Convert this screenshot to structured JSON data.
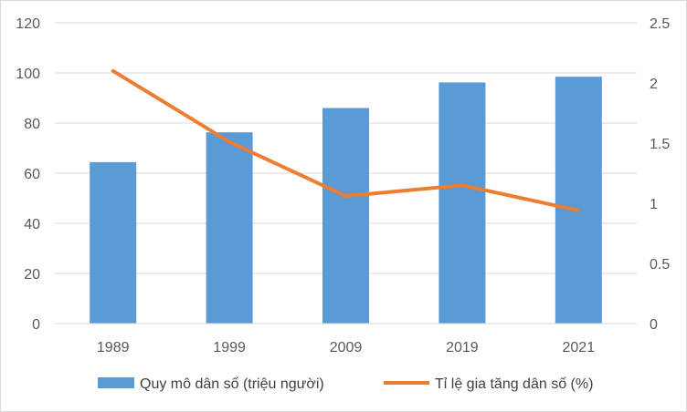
{
  "chart_data": {
    "type": "bar",
    "categories": [
      "1989",
      "1999",
      "2009",
      "2019",
      "2021"
    ],
    "series": [
      {
        "name": "Quy mô dân số (triệu người)",
        "chart_type": "bar",
        "axis": "left",
        "color": "#5b9bd5",
        "values": [
          64.4,
          76.3,
          86.0,
          96.2,
          98.5
        ]
      },
      {
        "name": "Tỉ lệ gia tăng dân số (%)",
        "chart_type": "line",
        "axis": "right",
        "color": "#ed7d31",
        "values": [
          2.1,
          1.51,
          1.06,
          1.15,
          0.94
        ]
      }
    ],
    "y_left": {
      "range": [
        0,
        120
      ],
      "ticks": [
        "0",
        "20",
        "40",
        "60",
        "80",
        "100",
        "120"
      ]
    },
    "y_right": {
      "range": [
        0,
        2.5
      ],
      "ticks": [
        "0",
        "0.5",
        "1",
        "1.5",
        "2",
        "2.5"
      ]
    },
    "title": "",
    "xlabel": "",
    "ylabel": "",
    "grid": true,
    "legend_position": "bottom"
  }
}
